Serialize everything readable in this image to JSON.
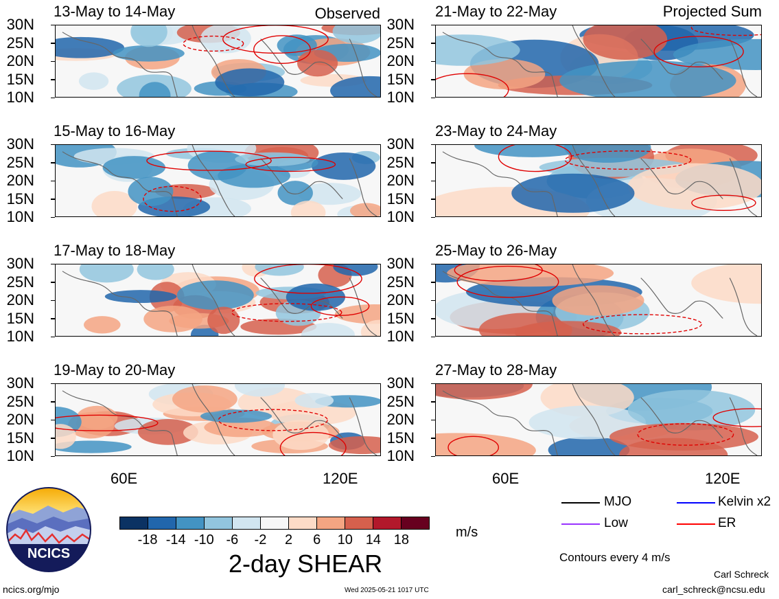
{
  "panels_left": [
    {
      "title": "13-May to 14-May",
      "tag": "Observed"
    },
    {
      "title": "15-May to 16-May",
      "tag": ""
    },
    {
      "title": "17-May to 18-May",
      "tag": ""
    },
    {
      "title": "19-May to 20-May",
      "tag": ""
    }
  ],
  "panels_right": [
    {
      "title": "21-May to 22-May",
      "tag": "Projected Sum"
    },
    {
      "title": "23-May to 24-May",
      "tag": ""
    },
    {
      "title": "25-May to 26-May",
      "tag": ""
    },
    {
      "title": "27-May to 28-May",
      "tag": ""
    }
  ],
  "lat_labels": [
    "30N",
    "25N",
    "20N",
    "15N",
    "10N"
  ],
  "lon_labels": [
    "60E",
    "120E"
  ],
  "colorbar": {
    "colors": [
      "#0b3263",
      "#2166ac",
      "#4393c3",
      "#92c5de",
      "#d1e5f0",
      "#f7f7f7",
      "#fddbc7",
      "#f4a582",
      "#d6604d",
      "#b2182b",
      "#67001f"
    ],
    "labels": [
      "-18",
      "-14",
      "-10",
      "-6",
      "-2",
      "2",
      "6",
      "10",
      "14",
      "18"
    ],
    "units": "m/s",
    "title": "2-day SHEAR"
  },
  "legend": {
    "items": [
      {
        "label": "MJO",
        "color": "#000000"
      },
      {
        "label": "Kelvin x2",
        "color": "#0000ff"
      },
      {
        "label": "Low",
        "color": "#9933ff"
      },
      {
        "label": "ER",
        "color": "#ff0000"
      }
    ],
    "note": "Contours every 4 m/s"
  },
  "logo": {
    "text": "NCICS"
  },
  "footer": {
    "site": "ncics.org/mjo",
    "timestamp": "Wed 2025-05-21 1017 UTC",
    "author": "Carl Schreck",
    "email": "carl_schreck@ncsu.edu"
  }
}
